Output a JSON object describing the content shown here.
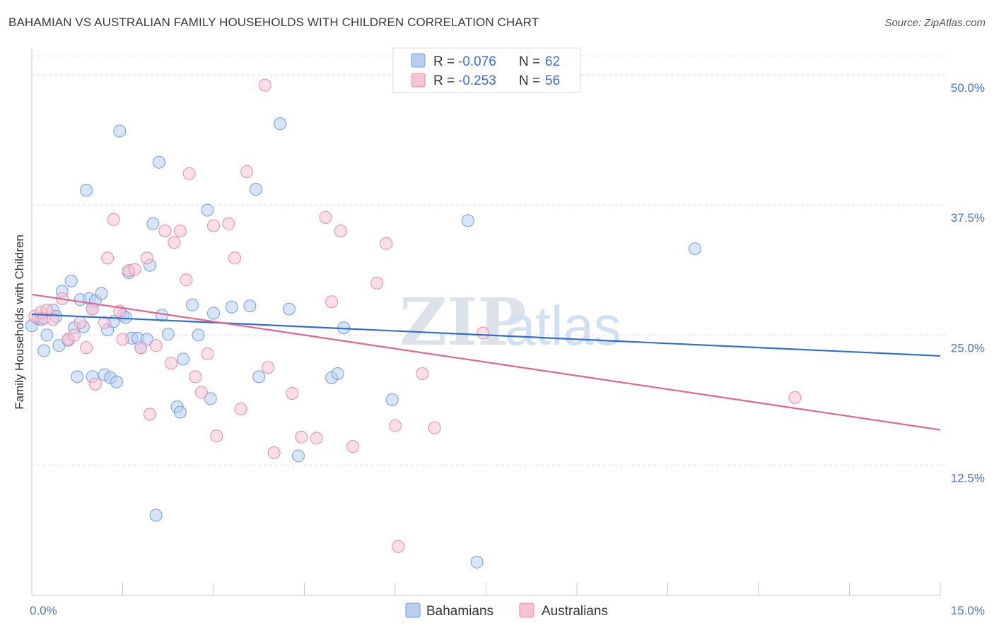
{
  "chart_data": {
    "type": "scatter",
    "title": "BAHAMIAN VS AUSTRALIAN FAMILY HOUSEHOLDS WITH CHILDREN CORRELATION CHART",
    "source": "Source: ZipAtlas.com",
    "xlabel": "",
    "ylabel": "Family Households with Children",
    "xlim": [
      0,
      15
    ],
    "ylim": [
      0,
      52.5
    ],
    "x_tick_labels": [
      {
        "value": 0,
        "label": "0.0%"
      },
      {
        "value": 15,
        "label": "15.0%"
      }
    ],
    "y_ticks": [
      {
        "value": 12.5,
        "label": "12.5%"
      },
      {
        "value": 25,
        "label": "25.0%"
      },
      {
        "value": 37.5,
        "label": "37.5%"
      },
      {
        "value": 50,
        "label": "50.0%"
      }
    ],
    "watermark": {
      "zip": "ZIP",
      "atlas": "atlas"
    },
    "legend": {
      "r_label": "R =",
      "n_label": "N =",
      "entries": [
        {
          "r": "-0.076",
          "n": "62"
        },
        {
          "r": "-0.253",
          "n": "56"
        }
      ]
    },
    "series": [
      {
        "name": "Bahamians",
        "color": "#6d9ee0",
        "fill": "#b8cdf0",
        "line_color": "#2f6fcc",
        "trend": {
          "x": [
            0,
            15
          ],
          "y": [
            27.0,
            23.0
          ]
        },
        "points": [
          [
            0.0,
            25.9
          ],
          [
            0.1,
            26.6
          ],
          [
            0.15,
            26.5
          ],
          [
            0.2,
            23.5
          ],
          [
            0.25,
            25.0
          ],
          [
            0.35,
            27.4
          ],
          [
            0.4,
            26.8
          ],
          [
            0.45,
            24.0
          ],
          [
            0.5,
            29.2
          ],
          [
            0.6,
            24.5
          ],
          [
            0.65,
            30.2
          ],
          [
            0.7,
            25.7
          ],
          [
            0.75,
            21.0
          ],
          [
            0.8,
            28.4
          ],
          [
            0.85,
            25.8
          ],
          [
            0.9,
            38.9
          ],
          [
            0.95,
            28.5
          ],
          [
            1.0,
            27.5
          ],
          [
            1.05,
            28.3
          ],
          [
            1.15,
            29.0
          ],
          [
            1.2,
            21.2
          ],
          [
            1.25,
            25.5
          ],
          [
            1.3,
            20.9
          ],
          [
            1.35,
            26.3
          ],
          [
            1.4,
            20.5
          ],
          [
            1.45,
            44.6
          ],
          [
            1.5,
            26.9
          ],
          [
            1.55,
            26.7
          ],
          [
            1.6,
            31.0
          ],
          [
            1.65,
            24.7
          ],
          [
            1.75,
            24.7
          ],
          [
            1.8,
            23.8
          ],
          [
            1.9,
            24.6
          ],
          [
            1.95,
            31.7
          ],
          [
            2.0,
            35.7
          ],
          [
            2.1,
            41.6
          ],
          [
            2.15,
            26.9
          ],
          [
            2.25,
            25.1
          ],
          [
            2.4,
            18.1
          ],
          [
            2.45,
            17.6
          ],
          [
            2.5,
            22.7
          ],
          [
            2.65,
            27.9
          ],
          [
            2.75,
            25.0
          ],
          [
            2.9,
            37.0
          ],
          [
            2.95,
            18.9
          ],
          [
            3.0,
            27.1
          ],
          [
            3.3,
            27.7
          ],
          [
            3.6,
            27.8
          ],
          [
            3.7,
            39.0
          ],
          [
            3.75,
            21.0
          ],
          [
            4.1,
            45.3
          ],
          [
            4.25,
            27.5
          ],
          [
            4.4,
            13.4
          ],
          [
            4.95,
            20.9
          ],
          [
            5.05,
            21.3
          ],
          [
            5.15,
            25.7
          ],
          [
            5.95,
            18.8
          ],
          [
            7.2,
            36.0
          ],
          [
            7.35,
            3.2
          ],
          [
            10.95,
            33.3
          ],
          [
            1.0,
            21.0
          ],
          [
            2.05,
            7.7
          ]
        ]
      },
      {
        "name": "Australians",
        "color": "#e88aa8",
        "fill": "#f7c3d4",
        "line_color": "#e06590",
        "trend": {
          "x": [
            0,
            15
          ],
          "y": [
            28.9,
            15.9
          ]
        },
        "points": [
          [
            0.05,
            26.8
          ],
          [
            0.15,
            27.2
          ],
          [
            0.2,
            26.6
          ],
          [
            0.35,
            26.5
          ],
          [
            0.5,
            28.5
          ],
          [
            0.6,
            24.6
          ],
          [
            0.7,
            25.0
          ],
          [
            0.8,
            26.2
          ],
          [
            0.9,
            23.8
          ],
          [
            1.0,
            27.5
          ],
          [
            1.05,
            20.3
          ],
          [
            1.2,
            26.2
          ],
          [
            1.25,
            32.4
          ],
          [
            1.35,
            36.1
          ],
          [
            1.45,
            27.3
          ],
          [
            1.5,
            24.6
          ],
          [
            1.6,
            31.2
          ],
          [
            1.7,
            31.3
          ],
          [
            1.8,
            23.8
          ],
          [
            1.9,
            32.4
          ],
          [
            1.95,
            17.4
          ],
          [
            2.05,
            24.0
          ],
          [
            2.2,
            35.0
          ],
          [
            2.3,
            22.3
          ],
          [
            2.35,
            33.9
          ],
          [
            2.45,
            35.0
          ],
          [
            2.55,
            30.3
          ],
          [
            2.6,
            40.5
          ],
          [
            2.7,
            21.0
          ],
          [
            2.8,
            19.5
          ],
          [
            2.9,
            23.2
          ],
          [
            3.0,
            35.5
          ],
          [
            3.05,
            15.3
          ],
          [
            3.25,
            35.7
          ],
          [
            3.35,
            32.4
          ],
          [
            3.45,
            17.9
          ],
          [
            3.55,
            40.7
          ],
          [
            3.85,
            49.0
          ],
          [
            3.9,
            21.9
          ],
          [
            4.0,
            13.7
          ],
          [
            4.3,
            19.4
          ],
          [
            4.45,
            15.2
          ],
          [
            4.7,
            15.1
          ],
          [
            4.85,
            36.3
          ],
          [
            4.95,
            28.2
          ],
          [
            5.1,
            35.0
          ],
          [
            5.3,
            14.3
          ],
          [
            5.7,
            30.0
          ],
          [
            5.85,
            33.8
          ],
          [
            6.0,
            16.3
          ],
          [
            6.05,
            4.7
          ],
          [
            6.45,
            21.3
          ],
          [
            6.65,
            16.1
          ],
          [
            7.45,
            25.2
          ],
          [
            12.6,
            19.0
          ],
          [
            0.25,
            27.4
          ]
        ]
      }
    ]
  }
}
